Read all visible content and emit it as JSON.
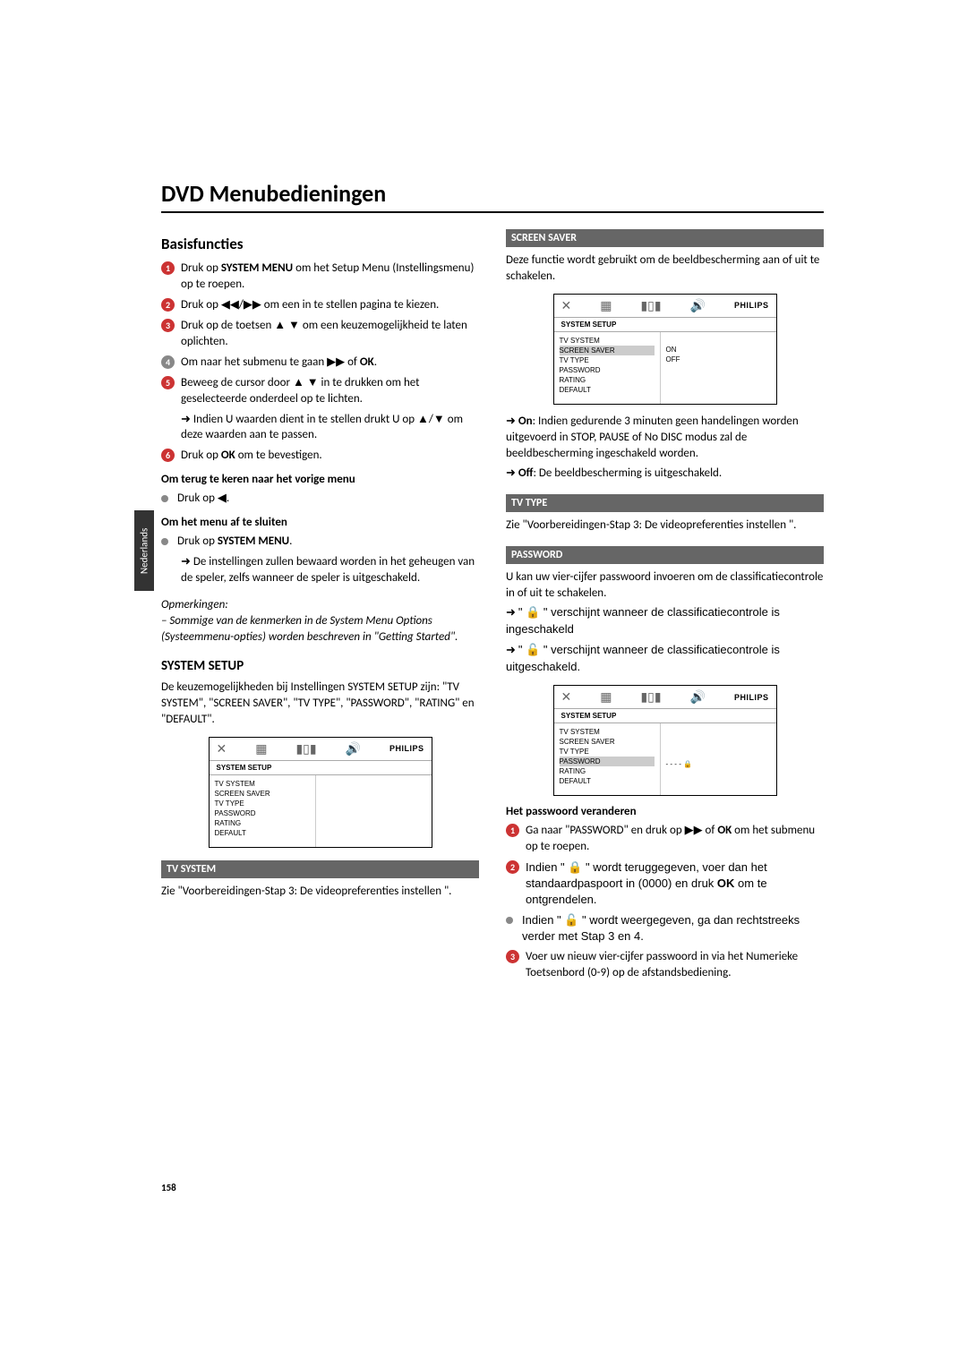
{
  "sidetab": "Nederlands",
  "page_title": "DVD Menubedieningen",
  "page_number": "158",
  "left": {
    "basis_heading": "Basisfuncties",
    "steps": [
      "Druk op **SYSTEM MENU** om het Setup Menu (Instellingsmenu) op te roepen.",
      "Druk op ◀◀/▶▶ om een in te stellen pagina te kiezen.",
      "Druk op de toetsen ▲ ▼ om een keuzemogelijkheid te laten oplichten.",
      "Om naar het submenu te gaan ▶▶ of **OK**.",
      "Beweeg de cursor door ▲ ▼ in te drukken om het geselecteerde onderdeel op te lichten."
    ],
    "step5_sub": "Indien U waarden dient in te stellen drukt U op ▲/▼ om deze waarden aan te passen.",
    "step6": "Druk op **OK** om te bevestigen.",
    "back_heading": "Om terug te keren naar het vorige menu",
    "back_text": "Druk op ◀.",
    "close_heading": "Om het menu af te sluiten",
    "close_text": "Druk op **SYSTEM MENU**.",
    "close_sub": "De instellingen zullen bewaard worden in het geheugen van de speler, zelfs wanneer de speler is uitgeschakeld.",
    "notes_label": "Opmerkingen:",
    "notes_text": "– Sommige van de kenmerken in de System Menu Options (Systeemmenu-opties) worden beschreven in \"Getting Started\".",
    "system_setup_heading": "SYSTEM SETUP",
    "system_setup_text": "De keuzemogelijkheden bij Instellingen SYSTEM SETUP zijn: \"TV SYSTEM\", \"SCREEN SAVER\", \"TV TYPE\", \"PASSWORD\", \"RATING\" en \"DEFAULT\".",
    "tv_system_bar": "TV SYSTEM",
    "tv_system_text": "Zie \"Voorbereidingen-Stap 3: De videopreferenties instellen \"."
  },
  "right": {
    "screensaver_bar": "SCREEN SAVER",
    "screensaver_text": "Deze functie wordt gebruikt om de beeldbescherming aan of uit te schakelen.",
    "ss_on": "**On**: Indien gedurende 3 minuten geen handelingen worden uitgevoerd in STOP, PAUSE of No DISC modus zal de beeldbescherming ingeschakeld worden.",
    "ss_off": "**Off**: De beeldbescherming is uitgeschakeld.",
    "tvtype_bar": "TV TYPE",
    "tvtype_text": "Zie \"Voorbereidingen-Stap 3: De videopreferenties instellen \".",
    "password_bar": "PASSWORD",
    "password_text": "U kan uw vier-cijfer passwoord invoeren om de classificatiecontrole in of uit te schakelen.",
    "pw_on": "\" 🔒 \" verschijnt wanneer de classificatiecontrole is ingeschakeld",
    "pw_off": "\" 🔓 \" verschijnt wanneer de classificatiecontrole is uitgeschakeld.",
    "pw_change_heading": "Het passwoord veranderen",
    "pw_step1": "Ga naar \"PASSWORD\" en druk op ▶▶ of **OK** om het submenu op te roepen.",
    "pw_step2": "Indien \" 🔒 \" wordt teruggegeven, voer dan het standaardpaspoort in (0000) en druk **OK** om te ontgrendelen.",
    "pw_step2b": "Indien \" 🔓 \" wordt weergegeven, ga dan rechtstreeks verder met Stap 3 en 4.",
    "pw_step3": "Voer uw nieuw vier-cijfer passwoord in via het Numerieke Toetsenbord (0-9) op de afstandsbediening."
  },
  "osd": {
    "brand": "PHILIPS",
    "title": "SYSTEM SETUP",
    "menu": [
      "TV SYSTEM",
      "SCREEN SAVER",
      "TV TYPE",
      "PASSWORD",
      "RATING",
      "DEFAULT"
    ],
    "ss_options": [
      "ON",
      "OFF"
    ],
    "pw_value": "- - - -  🔒"
  }
}
